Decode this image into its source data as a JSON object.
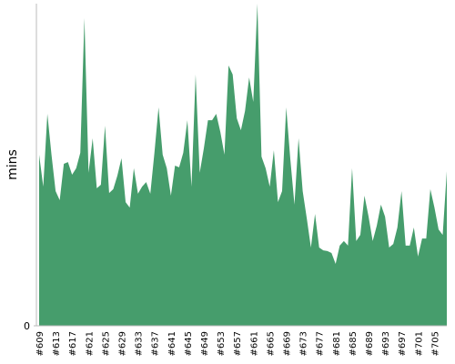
{
  "chart_data": {
    "type": "area",
    "ylabel": "mins",
    "color": "#469d6c",
    "ylim": [
      0,
      100
    ],
    "yticks": [
      0
    ],
    "categories": [
      "#609",
      null,
      null,
      null,
      "#613",
      null,
      null,
      null,
      "#617",
      null,
      null,
      null,
      "#621",
      null,
      null,
      null,
      "#625",
      null,
      null,
      null,
      "#629",
      null,
      null,
      null,
      "#633",
      null,
      null,
      null,
      "#637",
      null,
      null,
      null,
      "#641",
      null,
      null,
      null,
      "#645",
      null,
      null,
      null,
      "#649",
      null,
      null,
      null,
      "#653",
      null,
      null,
      null,
      "#657",
      null,
      null,
      null,
      "#661",
      null,
      null,
      null,
      "#665",
      null,
      null,
      null,
      "#669",
      null,
      null,
      null,
      "#673",
      null,
      null,
      null,
      "#677",
      null,
      null,
      null,
      "#681",
      null,
      null,
      null,
      "#685",
      null,
      null,
      null,
      "#689",
      null,
      null,
      null,
      "#693",
      null,
      null,
      null,
      "#697",
      null,
      null,
      null,
      "#701",
      null,
      null,
      null,
      "#705",
      null,
      null,
      null
    ],
    "values": [
      53.1,
      43.2,
      65.8,
      53.1,
      41.8,
      39.0,
      50.3,
      50.8,
      46.9,
      48.9,
      53.7,
      95.5,
      47.5,
      58.2,
      42.7,
      43.8,
      62.1,
      41.2,
      42.4,
      46.6,
      52.0,
      38.4,
      36.7,
      48.9,
      41.0,
      43.2,
      44.6,
      41.0,
      53.7,
      67.8,
      53.1,
      48.9,
      40.4,
      49.7,
      49.2,
      53.7,
      63.8,
      43.2,
      78.0,
      47.5,
      55.1,
      63.8,
      63.8,
      65.8,
      60.2,
      53.1,
      80.8,
      78.0,
      64.4,
      60.7,
      66.7,
      77.1,
      69.5,
      100,
      52.5,
      48.9,
      43.2,
      54.5,
      38.4,
      41.8,
      67.8,
      51.7,
      37.6,
      58.2,
      41.8,
      33.3,
      24.3,
      34.7,
      24.3,
      23.4,
      23.2,
      22.6,
      19.2,
      24.9,
      26.3,
      24.9,
      48.9,
      26.3,
      28.2,
      40.4,
      33.9,
      26.3,
      31.1,
      37.6,
      33.9,
      24.3,
      25.4,
      30.5,
      41.8,
      24.9,
      24.9,
      30.5,
      21.5,
      27.1,
      27.1,
      42.4,
      36.7,
      29.9,
      28.2,
      48.0
    ]
  }
}
